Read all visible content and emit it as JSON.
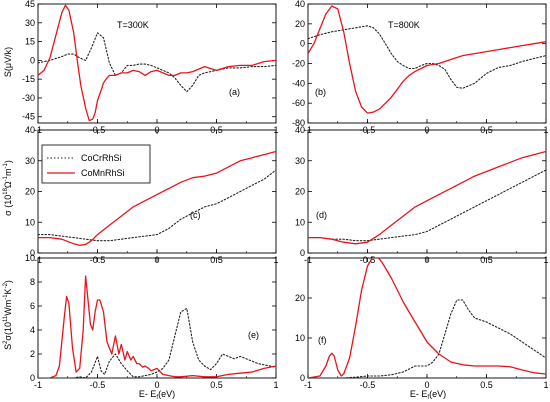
{
  "figure": {
    "x_axis_title": "E- E",
    "x_axis_title_sub": "f",
    "x_axis_title_unit": "(eV)",
    "y_axis_titles": {
      "seebeck": "S(μV/k)",
      "sigma": "σ (10",
      "sigma_exp": "18",
      "sigma_unit": "Ω",
      "sigma_exp2": "-1",
      "sigma_m": "m",
      "sigma_exp3": "-1",
      "sigma_close": ")",
      "pf": "S",
      "pf_exp": "2",
      "pf_sigma": "σ(10",
      "pf_exp2": "11",
      "pf_unit": "Wm",
      "pf_exp3": "-1",
      "pf_k": "K",
      "pf_exp4": "-2",
      "pf_close": ")"
    },
    "temperature_labels": [
      "T=300K",
      "T=800K"
    ],
    "legend": [
      "CoCrRhSi",
      "CoMnRhSi"
    ],
    "colors": {
      "CoCrRhSi": "#222222",
      "CoMnRhSi": "#e8141c"
    }
  },
  "chart_data": [
    {
      "type": "line",
      "panel": "(a)",
      "temperature": "T=300K",
      "ylabel": "S(μV/k)",
      "xlim": [
        -1,
        1
      ],
      "ylim": [
        -50,
        45
      ],
      "xticks": [
        "-1",
        "-0.5",
        "0",
        "0.5",
        "1"
      ],
      "xtick_values": [
        -1,
        -0.5,
        0,
        0.5,
        1
      ],
      "yticks": [
        "-45",
        "-30",
        "-15",
        "0",
        "15",
        "30",
        "45"
      ],
      "ytick_values": [
        -45,
        -30,
        -15,
        0,
        15,
        30,
        45
      ],
      "series": [
        {
          "name": "CoCrRhSi",
          "style": "dotted",
          "x": [
            -1,
            -0.9,
            -0.8,
            -0.75,
            -0.7,
            -0.65,
            -0.6,
            -0.55,
            -0.5,
            -0.45,
            -0.4,
            -0.35,
            -0.3,
            -0.25,
            -0.2,
            -0.15,
            -0.1,
            -0.05,
            0,
            0.05,
            0.1,
            0.15,
            0.2,
            0.25,
            0.3,
            0.35,
            0.4,
            0.5,
            0.6,
            0.7,
            0.8,
            0.9,
            1
          ],
          "y": [
            -2,
            0,
            3,
            5,
            5,
            2,
            0,
            10,
            22,
            18,
            -2,
            -12,
            -10,
            -4,
            -4,
            -3,
            -3,
            -4,
            -6,
            -8,
            -10,
            -14,
            -20,
            -25,
            -20,
            -12,
            -10,
            -8,
            -6,
            -6,
            -5,
            -5,
            -4
          ]
        },
        {
          "name": "CoMnRhSi",
          "style": "solid",
          "x": [
            -1,
            -0.95,
            -0.9,
            -0.85,
            -0.8,
            -0.77,
            -0.74,
            -0.7,
            -0.67,
            -0.64,
            -0.6,
            -0.57,
            -0.54,
            -0.52,
            -0.5,
            -0.47,
            -0.45,
            -0.42,
            -0.4,
            -0.35,
            -0.3,
            -0.25,
            -0.2,
            -0.15,
            -0.1,
            -0.05,
            0,
            0.05,
            0.1,
            0.15,
            0.2,
            0.25,
            0.3,
            0.35,
            0.4,
            0.5,
            0.6,
            0.7,
            0.8,
            0.9,
            1
          ],
          "y": [
            -12,
            -8,
            2,
            20,
            38,
            44,
            40,
            22,
            0,
            -20,
            -38,
            -48,
            -47,
            -42,
            -32,
            -24,
            -18,
            -14,
            -12,
            -12,
            -10,
            -10,
            -8,
            -9,
            -12,
            -9,
            -8,
            -10,
            -12,
            -12,
            -10,
            -10,
            -9,
            -7,
            -5,
            -8,
            -5,
            -4,
            -4,
            -1,
            0
          ]
        }
      ]
    },
    {
      "type": "line",
      "panel": "(b)",
      "temperature": "T=800K",
      "xlim": [
        -1,
        1
      ],
      "ylim": [
        -80,
        40
      ],
      "xticks": [
        "-1",
        "-0.5",
        "0",
        "0.5",
        "1"
      ],
      "xtick_values": [
        -1,
        -0.5,
        0,
        0.5,
        1
      ],
      "yticks": [
        "-80",
        "-60",
        "-40",
        "-20",
        "0",
        "20",
        "40"
      ],
      "ytick_values": [
        -80,
        -60,
        -40,
        -20,
        0,
        20,
        40
      ],
      "series": [
        {
          "name": "CoCrRhSi",
          "style": "dotted",
          "x": [
            -1,
            -0.9,
            -0.8,
            -0.7,
            -0.6,
            -0.5,
            -0.45,
            -0.4,
            -0.35,
            -0.3,
            -0.25,
            -0.2,
            -0.15,
            -0.1,
            -0.05,
            0,
            0.05,
            0.1,
            0.15,
            0.2,
            0.25,
            0.3,
            0.4,
            0.5,
            0.6,
            0.7,
            0.8,
            0.9,
            1
          ],
          "y": [
            5,
            9,
            12,
            14,
            16,
            18,
            16,
            10,
            0,
            -10,
            -18,
            -22,
            -25,
            -25,
            -22,
            -20,
            -20,
            -22,
            -26,
            -36,
            -44,
            -45,
            -40,
            -30,
            -24,
            -22,
            -18,
            -15,
            -12
          ]
        },
        {
          "name": "CoMnRhSi",
          "style": "solid",
          "x": [
            -1,
            -0.95,
            -0.9,
            -0.85,
            -0.8,
            -0.75,
            -0.7,
            -0.65,
            -0.6,
            -0.55,
            -0.5,
            -0.45,
            -0.4,
            -0.35,
            -0.3,
            -0.25,
            -0.2,
            -0.15,
            -0.1,
            -0.05,
            0,
            0.1,
            0.2,
            0.3,
            0.4,
            0.5,
            0.6,
            0.7,
            0.8,
            0.9,
            1
          ],
          "y": [
            -10,
            0,
            15,
            30,
            38,
            35,
            12,
            -20,
            -48,
            -64,
            -70,
            -69,
            -66,
            -60,
            -54,
            -46,
            -38,
            -32,
            -28,
            -25,
            -22,
            -20,
            -16,
            -12,
            -10,
            -8,
            -6,
            -4,
            -2,
            0,
            2
          ]
        }
      ]
    },
    {
      "type": "line",
      "panel": "(c)",
      "ylabel": "σ (10^18 Ω^-1 m^-1)",
      "xlim": [
        -1,
        1
      ],
      "ylim": [
        0,
        40
      ],
      "xticks": [
        "-1",
        "-0.5",
        "0",
        "0.5",
        "1"
      ],
      "xtick_values": [
        -1,
        -0.5,
        0,
        0.5,
        1
      ],
      "yticks": [
        "0",
        "10",
        "20",
        "30",
        "40"
      ],
      "ytick_values": [
        0,
        10,
        20,
        30,
        40
      ],
      "legend_position": "top-left",
      "series": [
        {
          "name": "CoCrRhSi",
          "style": "dotted",
          "x": [
            -1,
            -0.9,
            -0.8,
            -0.7,
            -0.6,
            -0.5,
            -0.4,
            -0.3,
            -0.2,
            -0.1,
            0,
            0.1,
            0.2,
            0.3,
            0.4,
            0.5,
            0.6,
            0.7,
            0.8,
            0.9,
            1
          ],
          "y": [
            6,
            6,
            5.5,
            5,
            4.5,
            4,
            4,
            4.5,
            5,
            5.5,
            6,
            8,
            11,
            13,
            15,
            16,
            18,
            20,
            22,
            24,
            27
          ]
        },
        {
          "name": "CoMnRhSi",
          "style": "solid",
          "x": [
            -1,
            -0.9,
            -0.8,
            -0.7,
            -0.65,
            -0.6,
            -0.55,
            -0.5,
            -0.4,
            -0.3,
            -0.2,
            -0.1,
            0,
            0.1,
            0.2,
            0.3,
            0.4,
            0.5,
            0.6,
            0.7,
            0.8,
            0.9,
            1
          ],
          "y": [
            5,
            5,
            4.5,
            3,
            2.5,
            2.8,
            4,
            6,
            9,
            12,
            15,
            17,
            19,
            21,
            23,
            24.5,
            25,
            26,
            28,
            30,
            31,
            32,
            33
          ]
        }
      ]
    },
    {
      "type": "line",
      "panel": "(d)",
      "xlim": [
        -1,
        1
      ],
      "ylim": [
        0,
        40
      ],
      "xticks": [
        "-1",
        "-0.5",
        "0",
        "0.5",
        "1"
      ],
      "xtick_values": [
        -1,
        -0.5,
        0,
        0.5,
        1
      ],
      "yticks": [
        "0",
        "10",
        "20",
        "30",
        "40"
      ],
      "ytick_values": [
        0,
        10,
        20,
        30,
        40
      ],
      "series": [
        {
          "name": "CoCrRhSi",
          "style": "dotted",
          "x": [
            -1,
            -0.9,
            -0.8,
            -0.7,
            -0.6,
            -0.5,
            -0.4,
            -0.3,
            -0.2,
            -0.1,
            0,
            0.1,
            0.2,
            0.3,
            0.4,
            0.5,
            0.6,
            0.7,
            0.8,
            0.9,
            1
          ],
          "y": [
            5,
            5,
            4.5,
            4.5,
            4,
            4,
            4.5,
            5,
            5.5,
            6,
            7,
            9,
            11,
            13,
            15,
            17,
            19,
            21,
            23,
            25,
            27
          ]
        },
        {
          "name": "CoMnRhSi",
          "style": "solid",
          "x": [
            -1,
            -0.9,
            -0.8,
            -0.7,
            -0.6,
            -0.5,
            -0.4,
            -0.3,
            -0.2,
            -0.1,
            0,
            0.1,
            0.2,
            0.3,
            0.4,
            0.5,
            0.6,
            0.7,
            0.8,
            0.9,
            1
          ],
          "y": [
            5,
            5,
            4.5,
            3.5,
            3,
            3.5,
            6,
            9,
            12,
            15,
            17,
            19,
            21,
            23,
            25,
            26.5,
            28,
            29.5,
            31,
            32,
            33
          ]
        }
      ]
    },
    {
      "type": "line",
      "panel": "(e)",
      "ylabel": "S^2σ(10^11 Wm^-1 K^-2)",
      "xlim": [
        -1,
        1
      ],
      "ylim": [
        0,
        10
      ],
      "xticks": [
        "-1",
        "-0.5",
        "0",
        "0.5",
        "1"
      ],
      "xtick_values": [
        -1,
        -0.5,
        0,
        0.5,
        1
      ],
      "yticks": [
        "0",
        "2",
        "4",
        "6",
        "8",
        "10"
      ],
      "ytick_values": [
        0,
        2,
        4,
        6,
        8,
        10
      ],
      "series": [
        {
          "name": "CoCrRhSi",
          "style": "dotted",
          "x": [
            -1,
            -0.9,
            -0.8,
            -0.7,
            -0.65,
            -0.6,
            -0.55,
            -0.5,
            -0.47,
            -0.44,
            -0.4,
            -0.35,
            -0.3,
            -0.25,
            -0.2,
            -0.15,
            -0.1,
            -0.05,
            0,
            0.05,
            0.1,
            0.15,
            0.2,
            0.25,
            0.3,
            0.35,
            0.4,
            0.45,
            0.5,
            0.55,
            0.6,
            0.65,
            0.7,
            0.75,
            0.8,
            0.85,
            0.9,
            0.95,
            1
          ],
          "y": [
            0,
            0,
            0,
            0,
            0.1,
            0,
            0.5,
            1.8,
            0.6,
            0.3,
            1.4,
            2,
            1.2,
            0.6,
            0.1,
            0.1,
            0.2,
            0.3,
            0.5,
            0.8,
            1.5,
            3.5,
            5.5,
            5.8,
            3,
            1.5,
            1,
            0.7,
            1.2,
            2,
            1.8,
            1.6,
            1.8,
            1.6,
            1.4,
            1.2,
            1.1,
            1.0,
            0.9
          ]
        },
        {
          "name": "CoMnRhSi",
          "style": "solid",
          "x": [
            -1,
            -0.95,
            -0.9,
            -0.85,
            -0.82,
            -0.78,
            -0.76,
            -0.74,
            -0.71,
            -0.68,
            -0.65,
            -0.62,
            -0.6,
            -0.58,
            -0.56,
            -0.54,
            -0.52,
            -0.5,
            -0.48,
            -0.45,
            -0.42,
            -0.38,
            -0.35,
            -0.32,
            -0.3,
            -0.27,
            -0.25,
            -0.22,
            -0.2,
            -0.17,
            -0.15,
            -0.12,
            -0.1,
            -0.07,
            -0.05,
            0,
            0.05,
            0.1,
            0.15,
            0.2,
            0.3,
            0.4,
            0.5,
            0.6,
            0.7,
            0.8,
            0.9,
            1
          ],
          "y": [
            0,
            0,
            0,
            0.2,
            1,
            5,
            6.8,
            6.2,
            2.5,
            0.5,
            0.8,
            4,
            8.5,
            6.5,
            4.5,
            4,
            5.5,
            6.5,
            6.5,
            5.5,
            3,
            2,
            3.5,
            2,
            2.8,
            1.5,
            2.2,
            1.5,
            1.8,
            1.2,
            1.2,
            0.9,
            1.0,
            0.8,
            0.6,
            0.8,
            0.3,
            0.2,
            0.1,
            0.1,
            0.2,
            0.1,
            0.1,
            0.3,
            0.4,
            0.5,
            0.8,
            1.0
          ]
        }
      ]
    },
    {
      "type": "line",
      "panel": "(f)",
      "xlim": [
        -1,
        1
      ],
      "ylim": [
        0,
        30
      ],
      "xticks": [
        "-1",
        "-0.5",
        "0",
        "0.5",
        "1"
      ],
      "xtick_values": [
        -1,
        -0.5,
        0,
        0.5,
        1
      ],
      "yticks": [
        "0",
        "10",
        "20"
      ],
      "ytick_values": [
        0,
        10,
        20
      ],
      "series": [
        {
          "name": "CoCrRhSi",
          "style": "dotted",
          "x": [
            -1,
            -0.9,
            -0.8,
            -0.7,
            -0.6,
            -0.5,
            -0.4,
            -0.3,
            -0.2,
            -0.1,
            0,
            0.05,
            0.1,
            0.15,
            0.2,
            0.25,
            0.3,
            0.35,
            0.4,
            0.5,
            0.6,
            0.7,
            0.8,
            0.9,
            1
          ],
          "y": [
            0,
            0,
            0,
            0,
            0.2,
            0.5,
            0.5,
            0.8,
            1.5,
            3,
            3,
            4,
            6,
            11,
            16,
            19.5,
            19.5,
            17,
            15,
            14,
            12.5,
            11,
            9,
            7,
            5
          ]
        },
        {
          "name": "CoMnRhSi",
          "style": "solid",
          "x": [
            -1,
            -0.9,
            -0.85,
            -0.82,
            -0.8,
            -0.78,
            -0.75,
            -0.72,
            -0.7,
            -0.65,
            -0.6,
            -0.55,
            -0.5,
            -0.45,
            -0.42,
            -0.38,
            -0.35,
            -0.3,
            -0.25,
            -0.2,
            -0.15,
            -0.1,
            -0.05,
            0,
            0.05,
            0.1,
            0.15,
            0.2,
            0.3,
            0.4,
            0.5,
            0.6,
            0.7,
            0.8,
            0.9,
            1
          ],
          "y": [
            0,
            0.5,
            3,
            5.5,
            6.2,
            5.5,
            2,
            0.5,
            1,
            5,
            13,
            22,
            28,
            30.5,
            30.5,
            29,
            27.5,
            25,
            22,
            19,
            16.5,
            14,
            11.5,
            9,
            7.5,
            6,
            5,
            4,
            3.3,
            3,
            3,
            3,
            2.8,
            2,
            1.3,
            1
          ]
        }
      ]
    }
  ]
}
